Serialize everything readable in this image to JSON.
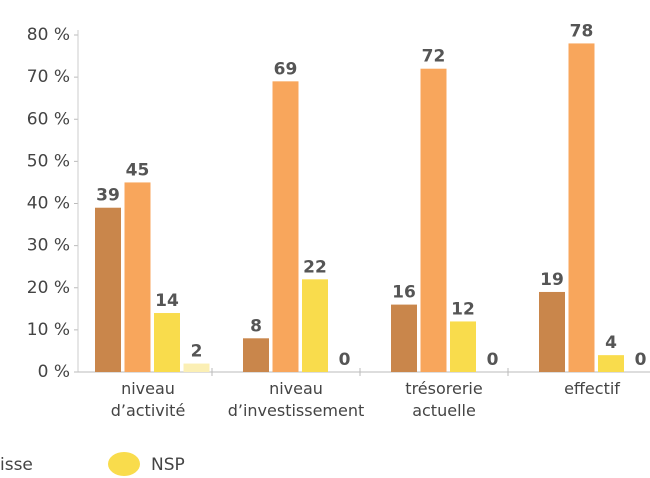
{
  "chart_data": {
    "type": "bar",
    "categories": [
      "niveau\nd’activité",
      "niveau\nd’investissement",
      "trésorerie\nactuelle",
      "effectif"
    ],
    "series": [
      {
        "color": "#c9864b",
        "values": [
          39,
          8,
          16,
          19
        ]
      },
      {
        "name": "isse",
        "color": "#f8a65c",
        "values": [
          45,
          69,
          72,
          78
        ]
      },
      {
        "name": "NSP",
        "color": "#f9dc4c",
        "values": [
          14,
          22,
          12,
          4
        ]
      },
      {
        "color": "#fbefb4",
        "values": [
          2,
          0,
          0,
          0
        ]
      }
    ],
    "ylim": [
      0,
      80
    ],
    "yticks": [
      {
        "value": 0,
        "label": "0 %"
      },
      {
        "value": 10,
        "label": "10 %"
      },
      {
        "value": 20,
        "label": "20 %"
      },
      {
        "value": 30,
        "label": "30 %"
      },
      {
        "value": 40,
        "label": "40 %"
      },
      {
        "value": 50,
        "label": "50 %"
      },
      {
        "value": 60,
        "label": "60 %"
      },
      {
        "value": 70,
        "label": "70 %"
      },
      {
        "value": 80,
        "label": "80 %"
      }
    ],
    "grid": false
  }
}
